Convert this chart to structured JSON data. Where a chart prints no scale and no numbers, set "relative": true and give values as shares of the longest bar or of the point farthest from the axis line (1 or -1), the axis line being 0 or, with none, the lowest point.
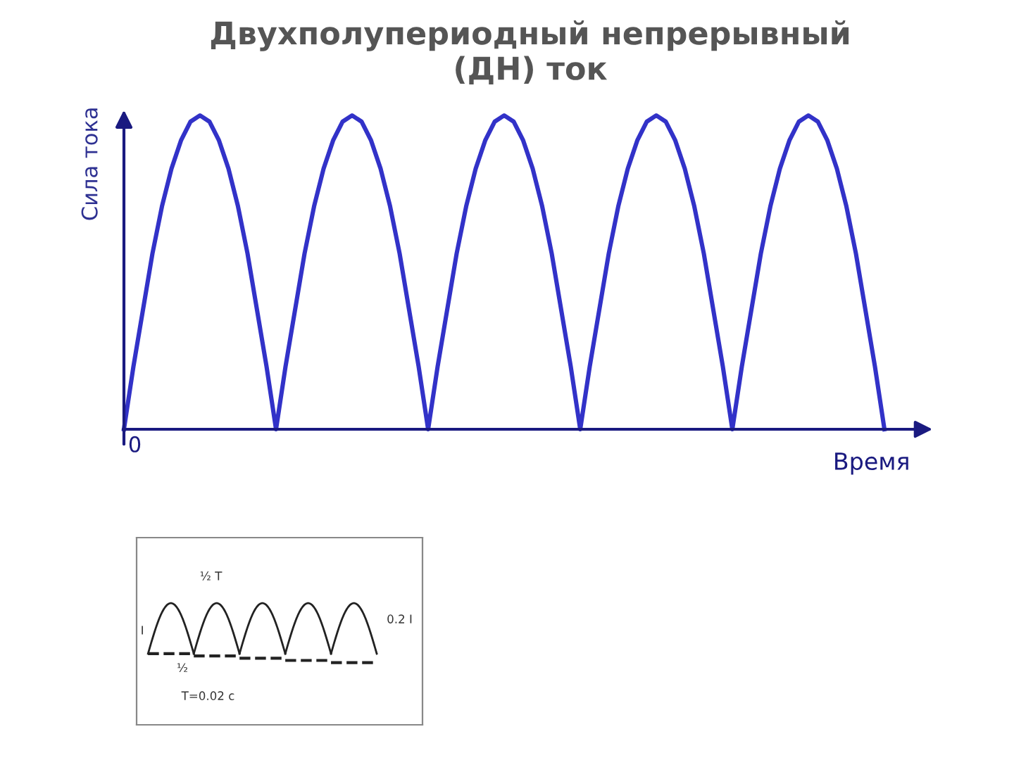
{
  "chart_data": [
    {
      "type": "line",
      "title": "Двухполупериодный непрерывный\n(ДН) ток",
      "ylabel": "Сила тока",
      "xlabel": "Время",
      "relative": true,
      "annotations": [
        "0"
      ],
      "categories": [
        null,
        null,
        null,
        null,
        null,
        null,
        null,
        null,
        null,
        null,
        null,
        null,
        null,
        null,
        null,
        null,
        null,
        null,
        null,
        null,
        null,
        null,
        null,
        null,
        null,
        null,
        null,
        null,
        null,
        null,
        null,
        null,
        null,
        null,
        null,
        null,
        null,
        null,
        null,
        null,
        null,
        null,
        null,
        null,
        null,
        null,
        null,
        null,
        null,
        null,
        null,
        null,
        null,
        null,
        null,
        null,
        null,
        null,
        null,
        null,
        null,
        null,
        null,
        null,
        null,
        null,
        null,
        null,
        null,
        null,
        null,
        null,
        null,
        null,
        null,
        null,
        null,
        null,
        null,
        null,
        null
      ],
      "series": [
        {
          "color": "#3232c8",
          "values": [
            0,
            0.2,
            0.38,
            0.56,
            0.71,
            0.83,
            0.92,
            0.98,
            1,
            0.98,
            0.92,
            0.83,
            0.71,
            0.56,
            0.38,
            0.2,
            0,
            0.2,
            0.38,
            0.56,
            0.71,
            0.83,
            0.92,
            0.98,
            1,
            0.98,
            0.92,
            0.83,
            0.71,
            0.56,
            0.38,
            0.2,
            0,
            0.2,
            0.38,
            0.56,
            0.71,
            0.83,
            0.92,
            0.98,
            1,
            0.98,
            0.92,
            0.83,
            0.71,
            0.56,
            0.38,
            0.2,
            0,
            0.2,
            0.38,
            0.56,
            0.71,
            0.83,
            0.92,
            0.98,
            1,
            0.98,
            0.92,
            0.83,
            0.71,
            0.56,
            0.38,
            0.2,
            0,
            0.2,
            0.38,
            0.56,
            0.71,
            0.83,
            0.92,
            0.98,
            1,
            0.98,
            0.92,
            0.83,
            0.71,
            0.56,
            0.38,
            0.2,
            0
          ]
        }
      ],
      "legend": false,
      "marker": "none",
      "line_style": "solid"
    },
    {
      "type": "other",
      "annotations": [
        "½ T",
        "I",
        "0.2 I",
        "½",
        "T=0.02 c"
      ]
    }
  ]
}
